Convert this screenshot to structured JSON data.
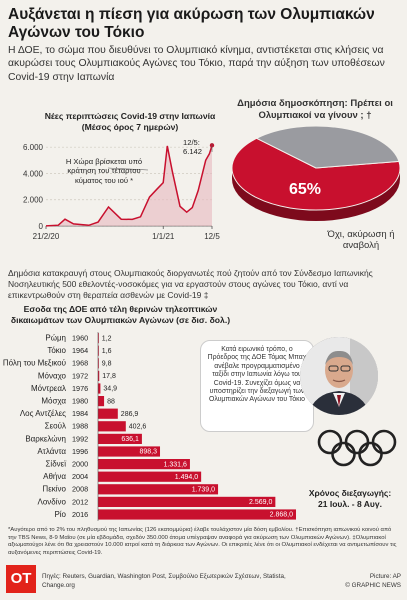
{
  "title": "Αυξάνεται η πίεση για ακύρωση των Ολυμπιακών Αγώνων του Τόκιο",
  "intro": "Η ΔΟΕ, το σώμα που διευθύνει το Ολυμπιακό κίνημα, αντιστέκεται στις κλήσεις να ακυρώσει τους Ολυμπιακούς Αγώνες του Τόκιο, παρά την αύξηση των υποθέσεων Covid-19 στην Ιαπωνία",
  "line_chart": {
    "title": "Νέες περιπτώσεις Covid-19 στην Ιαπωνία",
    "subtitle": "(Μέσος όρος 7 ημερών)",
    "annotation": "Η Χώρα βρίσκεται υπό κράτηση του τέταρτου κύματος του ιού *",
    "last_value_date": "12/5:",
    "last_value": "6.142"
  },
  "pie_chart": {
    "title": "Δημόσια δημοσκόπηση: Πρέπει οι Ολυμπιακοί να γίνουν ; †",
    "percent_label": "65%",
    "answer_label": "Όχι, ακύρωση ή αναβολή"
  },
  "paragraph2": "Δημόσια κατακραυγή στους Ολυμπιακούς διοργανωτές πού ζητούν από τον Σύνδεσμο Ιαπωνικής Νοσηλευτικής 500 εθελοντές-νοσοκόμες για να εργαστούν στους αγώνες του Τόκιο, αντί να επικεντρωθούν στη θεραπεία ασθενών με Covid-19 ‡",
  "bar_chart": {
    "title": "Εσοδα της ΔΟΕ από τέλη θερινών τηλεοπτικών δικαιωμάτων των Ολυμπιακών Αγώνων (σε δισ. δολ.)"
  },
  "quote": "Κατά ειρωνικό τρόπο, ο Πρόεδρος της ΔΟΕ Τόμας Μπαχ ανέβαλε προγραμματισμένο ταξίδι στην Ιαπωνία λόγω του Covid-19. Συνεχίζει όμως να υποστηρίζει την διεξαγωγή των Ολυμπιακών Αγώνων του Τόκιο",
  "host_time_label": "Χρόνος διεξαγωγής:",
  "host_time_value": "21 Ιουλ. - 8 Αυγ.",
  "footnote": "*Αυγότερο από το 2% του πληθυσμού της Ιαπωνίας (126 εκατομμύρια) έλαβε τουλάχιστον μία δόση εμβολίου. †Επισκόπηση ιαπωνικού κοινού από την TBS News, 8-9 Μαΐου (σε μία εβδομάδα, σχεδόν 350.000 άτομα υπέγραψαν αναφορά για ακύρωση των Ολυμπιακών Αγώνων). ‡Ολυμπιακοί αξιωματούχοι λένε ότι θα χρειαστούν 10.000 ιατροί κατά τη διάρκεια των Αγώνων. Οι επικριτές λένε ότι οι Ολυμπιακοί ενδέχεται να αντιμετωπίσουν τις αυξανόμενες περιπτώσεις Covid-19.",
  "logo_text": "ΟΤ",
  "sources": "Πηγές: Reuters, Guardian, Washington Post, Συμβούλιο Εξωτερικών Σχέσεων, Statista, Change.org",
  "credit_picture": "Picture: AP",
  "credit_graphic": "© GRAPHIC NEWS",
  "colors": {
    "accent": "#c8102e",
    "pie_gray": "#9a9ba0",
    "line": "#c8102e"
  },
  "chart_data": [
    {
      "type": "line",
      "title": "Νέες περιπτώσεις Covid-19 στην Ιαπωνία",
      "x_ticks": [
        "21/2/20",
        "1/1/21",
        "12/5"
      ],
      "y_ticks": [
        "0",
        "2.000",
        "4.000",
        "6.000"
      ],
      "ylim": [
        0,
        6700
      ],
      "x_range": [
        "2020-02-21",
        "2021-05-12"
      ],
      "series": [
        {
          "points": [
            [
              "2020-02-21",
              10
            ],
            [
              "2020-03-25",
              60
            ],
            [
              "2020-04-12",
              520
            ],
            [
              "2020-05-05",
              160
            ],
            [
              "2020-06-15",
              50
            ],
            [
              "2020-07-10",
              300
            ],
            [
              "2020-08-07",
              1450
            ],
            [
              "2020-09-10",
              520
            ],
            [
              "2020-10-10",
              500
            ],
            [
              "2020-11-01",
              700
            ],
            [
              "2020-11-25",
              2200
            ],
            [
              "2020-12-15",
              2800
            ],
            [
              "2021-01-01",
              3300
            ],
            [
              "2021-01-12",
              6100
            ],
            [
              "2021-01-25",
              4200
            ],
            [
              "2021-02-15",
              1500
            ],
            [
              "2021-03-05",
              1050
            ],
            [
              "2021-03-20",
              1400
            ],
            [
              "2021-04-05",
              2700
            ],
            [
              "2021-04-25",
              5000
            ],
            [
              "2021-05-05",
              5500
            ],
            [
              "2021-05-12",
              6142
            ]
          ]
        }
      ],
      "grid": true
    },
    {
      "type": "pie",
      "slices": [
        {
          "label": "Όχι, ακύρωση ή αναβολή",
          "value": 65,
          "color": "#c8102e"
        },
        {
          "label": "",
          "value": 35,
          "color": "#9a9ba0"
        }
      ]
    },
    {
      "type": "bar",
      "title": "Εσοδα της ΔΟΕ από τέλη θερινών τηλεοπτικών δικαιωμάτων των Ολυμπιακών Αγώνων (σε δισ. δολ.)",
      "categories": [
        "Ρώμη",
        "Τόκιο",
        "Πόλη του Μεξικού",
        "Μόναχο",
        "Μόντρεαλ",
        "Μόσχα",
        "Λος Αντζέλες",
        "Σεούλ",
        "Βαρκελώνη",
        "Ατλάντα",
        "Σίδνεϊ",
        "Αθήνα",
        "Πεκίνο",
        "Λονδίνο",
        "Ρίο"
      ],
      "years": [
        "1960",
        "1964",
        "1968",
        "1972",
        "1976",
        "1980",
        "1984",
        "1988",
        "1992",
        "1996",
        "2000",
        "2004",
        "2008",
        "2012",
        "2016"
      ],
      "values": [
        1.2,
        1.6,
        9.8,
        17.8,
        34.9,
        88,
        286.9,
        402.6,
        636.1,
        898.3,
        1331.6,
        1494,
        1739,
        2569,
        2868
      ],
      "value_labels": [
        "1,2",
        "1,6",
        "9,8",
        "17,8",
        "34,9",
        "88",
        "286,9",
        "402,6",
        "636,1",
        "898,3",
        "1.331,6",
        "1.494,0",
        "1.739,0",
        "2.569,0",
        "2.868,0"
      ],
      "xlim": [
        0,
        2868
      ]
    }
  ]
}
